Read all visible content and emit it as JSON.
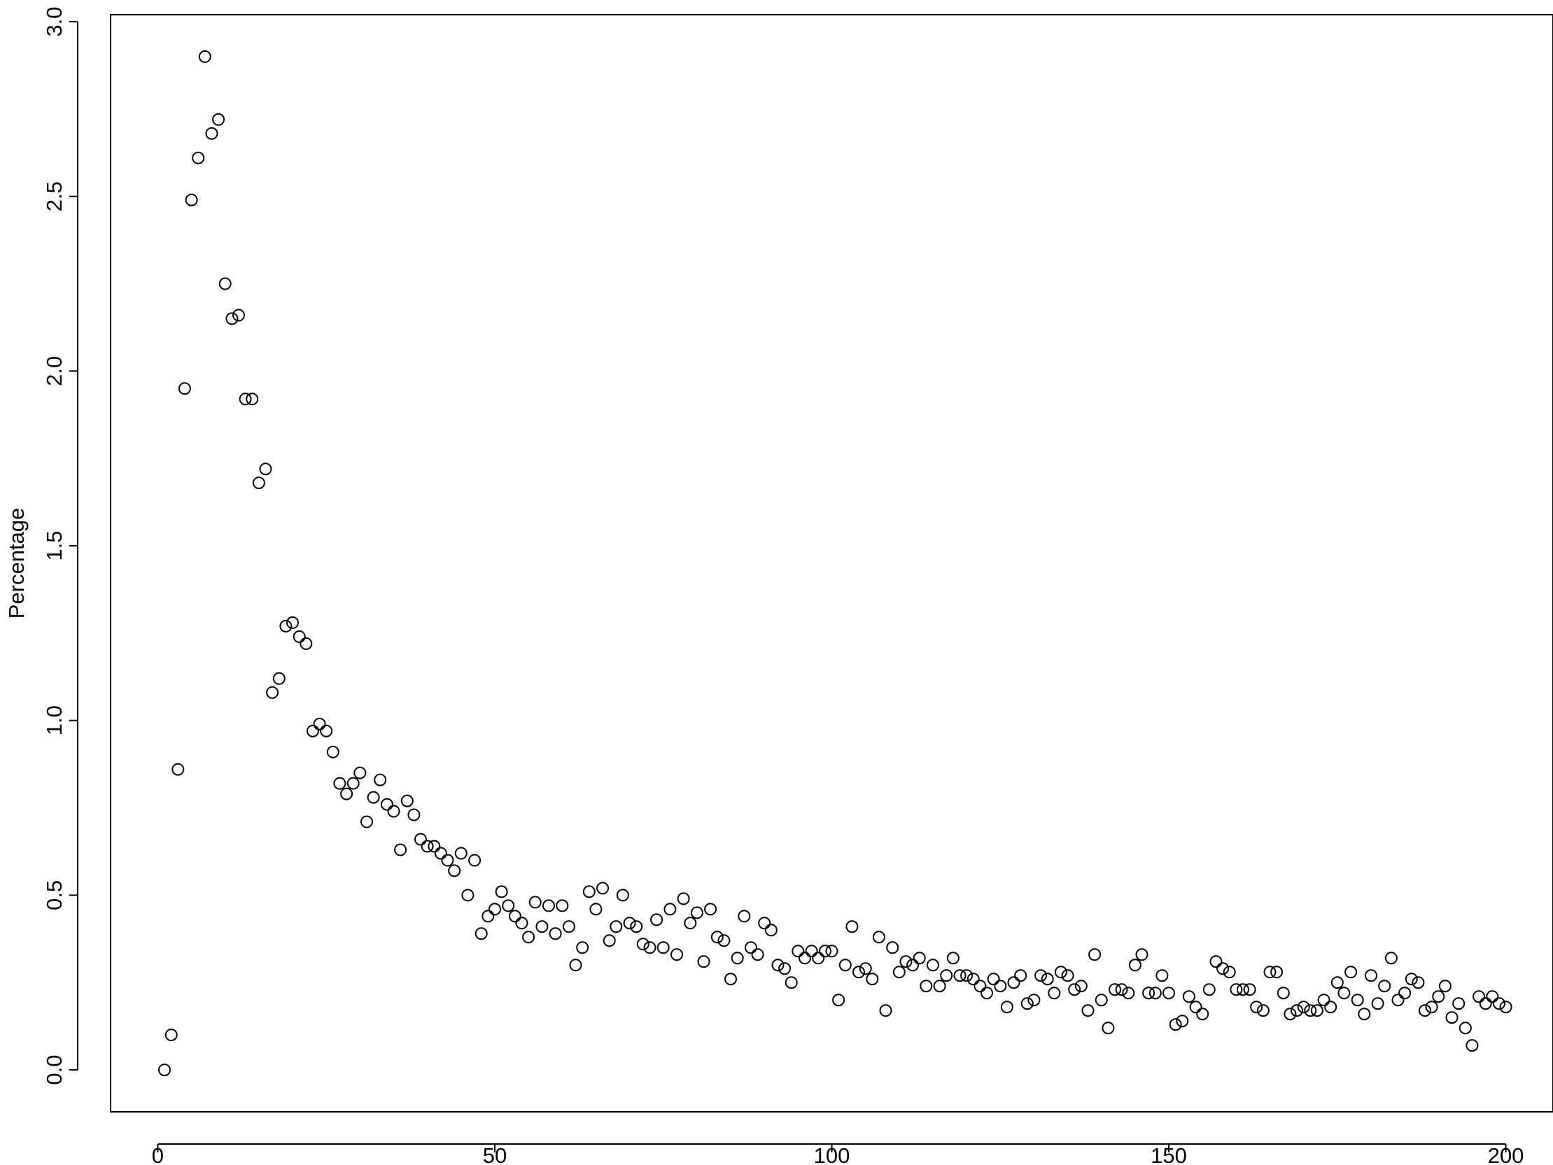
{
  "chart_data": {
    "type": "scatter",
    "title": "",
    "xlabel": "",
    "ylabel": "Percentage",
    "xlim": [
      -7,
      207
    ],
    "ylim": [
      -0.12,
      3.02
    ],
    "x_ticks": [
      {
        "value": 0,
        "label": "0"
      },
      {
        "value": 50,
        "label": "50"
      },
      {
        "value": 100,
        "label": "100"
      },
      {
        "value": 150,
        "label": "150"
      },
      {
        "value": 200,
        "label": "200"
      }
    ],
    "y_ticks": [
      {
        "value": 0,
        "label": "0.0"
      },
      {
        "value": 0.5,
        "label": "0.5"
      },
      {
        "value": 1,
        "label": "1.0"
      },
      {
        "value": 1.5,
        "label": "1.5"
      },
      {
        "value": 2,
        "label": "2.0"
      },
      {
        "value": 2.5,
        "label": "2.5"
      },
      {
        "value": 3,
        "label": "3.0"
      }
    ],
    "grid": false,
    "marker": "open-circle",
    "marker_color": "#000000",
    "x": [
      1,
      2,
      3,
      4,
      5,
      6,
      7,
      8,
      9,
      10,
      11,
      12,
      13,
      14,
      15,
      16,
      17,
      18,
      19,
      20,
      21,
      22,
      23,
      24,
      25,
      26,
      27,
      28,
      29,
      30,
      31,
      32,
      33,
      34,
      35,
      36,
      37,
      38,
      39,
      40,
      41,
      42,
      43,
      44,
      45,
      46,
      47,
      48,
      49,
      50,
      51,
      52,
      53,
      54,
      55,
      56,
      57,
      58,
      59,
      60,
      61,
      62,
      63,
      64,
      65,
      66,
      67,
      68,
      69,
      70,
      71,
      72,
      73,
      74,
      75,
      76,
      77,
      78,
      79,
      80,
      81,
      82,
      83,
      84,
      85,
      86,
      87,
      88,
      89,
      90,
      91,
      92,
      93,
      94,
      95,
      96,
      97,
      98,
      99,
      100,
      101,
      102,
      103,
      104,
      105,
      106,
      107,
      108,
      109,
      110,
      111,
      112,
      113,
      114,
      115,
      116,
      117,
      118,
      119,
      120,
      121,
      122,
      123,
      124,
      125,
      126,
      127,
      128,
      129,
      130,
      131,
      132,
      133,
      134,
      135,
      136,
      137,
      138,
      139,
      140,
      141,
      142,
      143,
      144,
      145,
      146,
      147,
      148,
      149,
      150,
      151,
      152,
      153,
      154,
      155,
      156,
      157,
      158,
      159,
      160,
      161,
      162,
      163,
      164,
      165,
      166,
      167,
      168,
      169,
      170,
      171,
      172,
      173,
      174,
      175,
      176,
      177,
      178,
      179,
      180,
      181,
      182,
      183,
      184,
      185,
      186,
      187,
      188,
      189,
      190,
      191,
      192,
      193,
      194,
      195,
      196,
      197,
      198,
      199,
      200
    ],
    "y": [
      0.0,
      0.1,
      0.86,
      1.95,
      2.49,
      2.61,
      2.9,
      2.68,
      2.72,
      2.25,
      2.15,
      2.16,
      1.92,
      1.92,
      1.68,
      1.72,
      1.08,
      1.12,
      1.27,
      1.28,
      1.24,
      1.22,
      0.97,
      0.99,
      0.97,
      0.91,
      0.82,
      0.79,
      0.82,
      0.85,
      0.71,
      0.78,
      0.83,
      0.76,
      0.74,
      0.63,
      0.77,
      0.73,
      0.66,
      0.64,
      0.64,
      0.62,
      0.6,
      0.57,
      0.62,
      0.5,
      0.6,
      0.39,
      0.44,
      0.46,
      0.51,
      0.47,
      0.44,
      0.42,
      0.38,
      0.48,
      0.41,
      0.47,
      0.39,
      0.47,
      0.41,
      0.3,
      0.35,
      0.51,
      0.46,
      0.52,
      0.37,
      0.41,
      0.5,
      0.42,
      0.41,
      0.36,
      0.35,
      0.43,
      0.35,
      0.46,
      0.33,
      0.49,
      0.42,
      0.45,
      0.31,
      0.46,
      0.38,
      0.37,
      0.26,
      0.32,
      0.44,
      0.35,
      0.33,
      0.42,
      0.4,
      0.3,
      0.29,
      0.25,
      0.34,
      0.32,
      0.34,
      0.32,
      0.34,
      0.34,
      0.2,
      0.3,
      0.41,
      0.28,
      0.29,
      0.26,
      0.38,
      0.17,
      0.35,
      0.28,
      0.31,
      0.3,
      0.32,
      0.24,
      0.3,
      0.24,
      0.27,
      0.32,
      0.27,
      0.27,
      0.26,
      0.24,
      0.22,
      0.26,
      0.24,
      0.18,
      0.25,
      0.27,
      0.19,
      0.2,
      0.27,
      0.26,
      0.22,
      0.28,
      0.27,
      0.23,
      0.24,
      0.17,
      0.33,
      0.2,
      0.12,
      0.23,
      0.23,
      0.22,
      0.3,
      0.33,
      0.22,
      0.22,
      0.27,
      0.22,
      0.13,
      0.14,
      0.21,
      0.18,
      0.16,
      0.23,
      0.31,
      0.29,
      0.28,
      0.23,
      0.23,
      0.23,
      0.18,
      0.17,
      0.28,
      0.28,
      0.22,
      0.16,
      0.17,
      0.18,
      0.17,
      0.17,
      0.2,
      0.18,
      0.25,
      0.22,
      0.28,
      0.2,
      0.16,
      0.27,
      0.19,
      0.24,
      0.32,
      0.2,
      0.22,
      0.26,
      0.25,
      0.17,
      0.18,
      0.21,
      0.24,
      0.15,
      0.19,
      0.12,
      0.07,
      0.21,
      0.19,
      0.21,
      0.19,
      0.18
    ]
  }
}
